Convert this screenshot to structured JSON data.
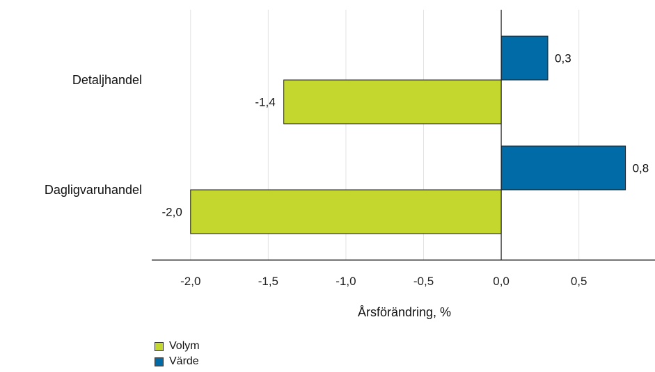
{
  "chart_data": {
    "type": "bar",
    "orientation": "horizontal",
    "categories": [
      "Detaljhandel",
      "Dagligvaruhandel"
    ],
    "series": [
      {
        "name": "Volym",
        "color": "#c3d72f",
        "values": [
          -1.4,
          -2.0
        ],
        "labels": [
          "-1,4",
          "-2,0"
        ]
      },
      {
        "name": "Värde",
        "color": "#006ba6",
        "values": [
          0.3,
          0.8
        ],
        "labels": [
          "0,3",
          "0,8"
        ]
      }
    ],
    "xlabel": "Årsförändring, %",
    "xlim": [
      -2.25,
      0.99
    ],
    "xticks": [
      -2.0,
      -1.5,
      -1.0,
      -0.5,
      0.0,
      0.5
    ],
    "xtick_labels": [
      "-2,0",
      "-1,5",
      "-1,0",
      "-0,5",
      "0,0",
      "0,5"
    ],
    "grid": true,
    "legend_position": "bottom-left"
  }
}
